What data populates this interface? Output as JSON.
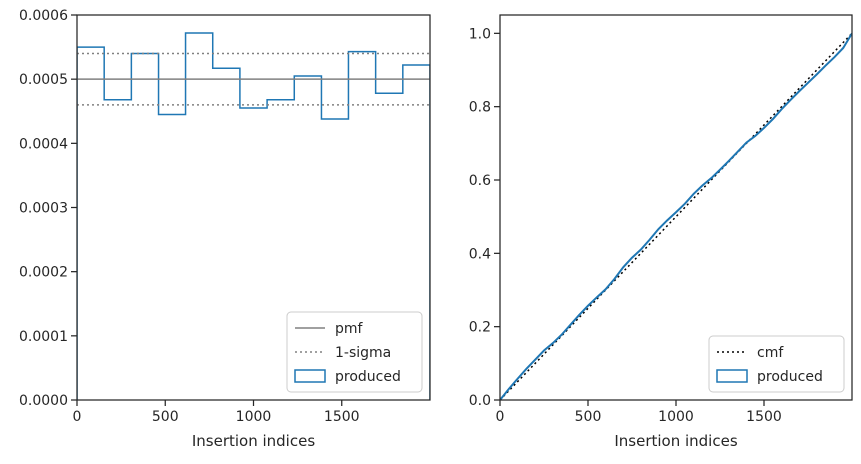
{
  "chart_data": [
    {
      "type": "step",
      "xlabel": "Insertion indices",
      "ylabel": "",
      "xlim": [
        0,
        2000
      ],
      "ylim": [
        0,
        0.0006
      ],
      "xticks": [
        0,
        500,
        1000,
        1500
      ],
      "xtick_labels": [
        "0",
        "500",
        "1000",
        "1500"
      ],
      "yticks": [
        0,
        0.0001,
        0.0002,
        0.0003,
        0.0004,
        0.0005,
        0.0006
      ],
      "ytick_labels": [
        "0.0000",
        "0.0001",
        "0.0002",
        "0.0003",
        "0.0004",
        "0.0005",
        "0.0006"
      ],
      "bin_edges": [
        0,
        154,
        308,
        462,
        615,
        769,
        923,
        1077,
        1231,
        1385,
        1538,
        1692,
        1846,
        2000
      ],
      "series": [
        {
          "name": "produced",
          "values": [
            0.00055,
            0.000468,
            0.00054,
            0.000445,
            0.000572,
            0.000517,
            0.000455,
            0.000468,
            0.000505,
            0.000438,
            0.000543,
            0.000478,
            0.000522
          ],
          "color": "#1f77b4",
          "style": "step-histogram"
        },
        {
          "name": "pmf",
          "y": 0.0005,
          "color": "#808080",
          "style": "solid"
        },
        {
          "name": "1-sigma",
          "y": [
            0.00046,
            0.00054
          ],
          "color": "#808080",
          "style": "dotted"
        }
      ],
      "legend": {
        "location": "lower right",
        "entries": [
          {
            "label": "pmf",
            "style": "solid",
            "color": "#808080"
          },
          {
            "label": "1-sigma",
            "style": "dotted",
            "color": "#808080"
          },
          {
            "label": "produced",
            "style": "patch",
            "color": "#1f77b4"
          }
        ]
      },
      "grid": false
    },
    {
      "type": "line",
      "xlabel": "Insertion indices",
      "ylabel": "",
      "xlim": [
        0,
        2000
      ],
      "ylim": [
        0,
        1.05
      ],
      "xticks": [
        0,
        500,
        1000,
        1500
      ],
      "xtick_labels": [
        "0",
        "500",
        "1000",
        "1500"
      ],
      "yticks": [
        0,
        0.2,
        0.4,
        0.6,
        0.8,
        1.0
      ],
      "ytick_labels": [
        "0.0",
        "0.2",
        "0.4",
        "0.6",
        "0.8",
        "1.0"
      ],
      "series": [
        {
          "name": "cmf",
          "x": [
            0,
            2000
          ],
          "y": [
            0,
            1.0
          ],
          "color": "#000000",
          "style": "dotted"
        },
        {
          "name": "produced",
          "x": [
            0,
            50,
            100,
            150,
            200,
            250,
            300,
            350,
            400,
            450,
            500,
            550,
            600,
            650,
            700,
            750,
            800,
            850,
            900,
            950,
            1000,
            1050,
            1100,
            1150,
            1200,
            1250,
            1300,
            1350,
            1400,
            1450,
            1500,
            1550,
            1600,
            1650,
            1700,
            1750,
            1800,
            1850,
            1900,
            1950,
            2000
          ],
          "y": [
            0,
            0.03,
            0.058,
            0.085,
            0.11,
            0.135,
            0.155,
            0.178,
            0.205,
            0.232,
            0.257,
            0.28,
            0.302,
            0.33,
            0.362,
            0.388,
            0.41,
            0.437,
            0.466,
            0.49,
            0.512,
            0.535,
            0.562,
            0.585,
            0.605,
            0.628,
            0.652,
            0.677,
            0.702,
            0.72,
            0.742,
            0.766,
            0.793,
            0.818,
            0.842,
            0.865,
            0.888,
            0.912,
            0.935,
            0.96,
            1.0
          ],
          "color": "#1f77b4",
          "style": "solid"
        }
      ],
      "legend": {
        "location": "lower right",
        "entries": [
          {
            "label": "cmf",
            "style": "dotted",
            "color": "#000000"
          },
          {
            "label": "produced",
            "style": "patch",
            "color": "#1f77b4"
          }
        ]
      },
      "grid": false
    }
  ]
}
